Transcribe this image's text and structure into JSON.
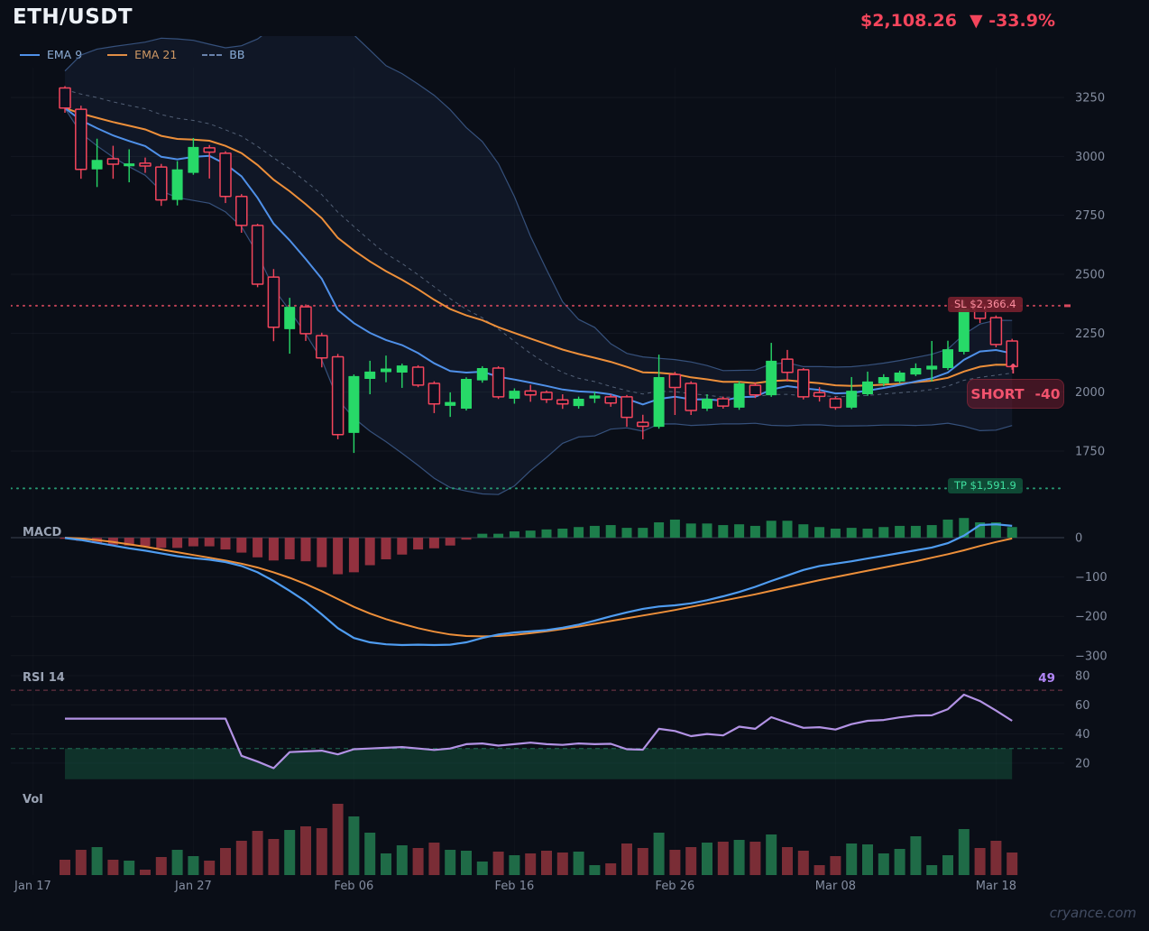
{
  "header": {
    "symbol": "ETH/USDT",
    "price": "$2,108.26",
    "change": "▼ -33.9%"
  },
  "legend": [
    {
      "label": "EMA 9",
      "color": "#4f90e8",
      "style": "solid"
    },
    {
      "label": "EMA 21",
      "color": "#ed8f3a",
      "style": "solid"
    },
    {
      "label": "BB",
      "color": "#6b82a8",
      "style": "dashed"
    }
  ],
  "panels": {
    "macd": {
      "label": "MACD"
    },
    "rsi": {
      "label": "RSI 14",
      "value": "49"
    },
    "vol": {
      "label": "Vol"
    }
  },
  "annotations": {
    "sl": {
      "label": "SL $2,366.4",
      "price": 2366.4
    },
    "tp": {
      "label": "TP $1,591.9",
      "price": 1591.9
    },
    "short": {
      "text": "SHORT",
      "value": "-40",
      "arrow": "↑"
    }
  },
  "watermark": "cryance.com",
  "chart_data": {
    "type": "candlestick",
    "title": "ETH/USDT daily chart with EMA 9, EMA 21, Bollinger Bands, MACD, RSI 14 and volume",
    "colors": {
      "background": "#0a0e17",
      "candle_up": "#27d968",
      "candle_down": "#f4455c",
      "ema9": "#4f90e8",
      "ema21": "#ed8f3a",
      "bb_line": "#3d5c8c",
      "bb_mid": "#93a7c4",
      "macd_line": "#4f9cf0",
      "macd_signal": "#ed8f3a",
      "hist_up": "#1d7e4b",
      "hist_down": "#93313f",
      "rsi_line": "#b292e4",
      "rsi_over": "#c4566a",
      "rsi_under": "#2ea97c",
      "vol_up": "#1f6b47",
      "vol_down": "#7a2d36",
      "sl_line": "#d8495e",
      "tp_line": "#2aa97c",
      "axis_text": "#848da0"
    },
    "axes": {
      "price": [
        {
          "v": 3250,
          "label": "3250"
        },
        {
          "v": 3000,
          "label": "3000"
        },
        {
          "v": 2750,
          "label": "2750"
        },
        {
          "v": 2500,
          "label": "2500"
        },
        {
          "v": 2250,
          "label": "2250"
        },
        {
          "v": 2000,
          "label": "2000"
        },
        {
          "v": 1750,
          "label": "1750"
        }
      ],
      "macd": [
        {
          "v": 0,
          "label": "0"
        },
        {
          "v": -100,
          "label": "−100"
        },
        {
          "v": -200,
          "label": "−200"
        },
        {
          "v": -300,
          "label": "−300"
        }
      ],
      "rsi": [
        {
          "v": 80,
          "label": "80"
        },
        {
          "v": 60,
          "label": "60"
        },
        {
          "v": 40,
          "label": "40"
        },
        {
          "v": 20,
          "label": "20"
        }
      ],
      "x_ticks": [
        {
          "i": -2,
          "label": "Jan 17"
        },
        {
          "i": 8,
          "label": "Jan 27"
        },
        {
          "i": 18,
          "label": "Feb 06"
        },
        {
          "i": 28,
          "label": "Feb 16"
        },
        {
          "i": 38,
          "label": "Feb 26"
        },
        {
          "i": 48,
          "label": "Mar 08"
        },
        {
          "i": 58,
          "label": "Mar 18"
        }
      ]
    },
    "candles": [
      [
        3290,
        3298,
        3185,
        3205
      ],
      [
        3200,
        3215,
        2905,
        2945
      ],
      [
        2945,
        3075,
        2870,
        2985
      ],
      [
        2990,
        3045,
        2905,
        2967
      ],
      [
        2958,
        3030,
        2890,
        2970
      ],
      [
        2971,
        2995,
        2930,
        2959
      ],
      [
        2955,
        2968,
        2790,
        2815
      ],
      [
        2815,
        2980,
        2792,
        2945
      ],
      [
        2930,
        3078,
        2922,
        3040
      ],
      [
        3036,
        3048,
        2906,
        3018
      ],
      [
        3013,
        3022,
        2802,
        2830
      ],
      [
        2830,
        2840,
        2676,
        2707
      ],
      [
        2707,
        2714,
        2445,
        2458
      ],
      [
        2488,
        2522,
        2216,
        2275
      ],
      [
        2267,
        2400,
        2163,
        2362
      ],
      [
        2362,
        2372,
        2217,
        2248
      ],
      [
        2240,
        2252,
        2105,
        2145
      ],
      [
        2150,
        2162,
        1800,
        1820
      ],
      [
        1827,
        2075,
        1742,
        2068
      ],
      [
        2056,
        2133,
        1991,
        2087
      ],
      [
        2085,
        2155,
        2042,
        2100
      ],
      [
        2083,
        2121,
        2018,
        2113
      ],
      [
        2106,
        2114,
        2021,
        2030
      ],
      [
        2037,
        2046,
        1911,
        1950
      ],
      [
        1942,
        1999,
        1895,
        1958
      ],
      [
        1930,
        2063,
        1922,
        2056
      ],
      [
        2050,
        2110,
        2040,
        2102
      ],
      [
        2102,
        2110,
        1971,
        1980
      ],
      [
        1972,
        2016,
        1951,
        2006
      ],
      [
        2005,
        2031,
        1959,
        1988
      ],
      [
        1999,
        2007,
        1954,
        1969
      ],
      [
        1967,
        1991,
        1929,
        1950
      ],
      [
        1941,
        1981,
        1930,
        1972
      ],
      [
        1973,
        2001,
        1954,
        1986
      ],
      [
        1980,
        1991,
        1938,
        1954
      ],
      [
        1980,
        1988,
        1853,
        1893
      ],
      [
        1872,
        1904,
        1800,
        1855
      ],
      [
        1853,
        2159,
        1845,
        2064
      ],
      [
        2075,
        2086,
        1903,
        2020
      ],
      [
        2037,
        2046,
        1903,
        1922
      ],
      [
        1930,
        1991,
        1920,
        1972
      ],
      [
        1972,
        1981,
        1930,
        1941
      ],
      [
        1934,
        2046,
        1925,
        2037
      ],
      [
        2029,
        2041,
        1975,
        1988
      ],
      [
        1987,
        2209,
        1980,
        2133
      ],
      [
        2140,
        2179,
        2045,
        2084
      ],
      [
        2095,
        2102,
        1969,
        1980
      ],
      [
        1998,
        2021,
        1960,
        1982
      ],
      [
        1972,
        1981,
        1925,
        1935
      ],
      [
        1934,
        2064,
        1928,
        2006
      ],
      [
        1991,
        2087,
        1984,
        2045
      ],
      [
        2037,
        2076,
        2025,
        2064
      ],
      [
        2045,
        2091,
        2038,
        2083
      ],
      [
        2075,
        2122,
        2068,
        2102
      ],
      [
        2096,
        2217,
        2045,
        2112
      ],
      [
        2102,
        2218,
        2094,
        2182
      ],
      [
        2171,
        2389,
        2160,
        2354
      ],
      [
        2370,
        2378,
        2293,
        2313
      ],
      [
        2316,
        2325,
        2190,
        2202
      ],
      [
        2217,
        2226,
        2095,
        2108.26
      ]
    ],
    "volume": [
      17,
      28,
      31,
      17,
      16,
      6,
      20,
      28,
      21,
      16,
      30,
      38,
      49,
      40,
      50,
      54,
      52,
      79,
      65,
      47,
      24,
      33,
      30,
      36,
      28,
      27,
      15,
      26,
      22,
      24,
      27,
      25,
      26,
      11,
      13,
      35,
      30,
      47,
      28,
      31,
      36,
      37,
      39,
      37,
      45,
      31,
      27,
      11,
      21,
      35,
      34,
      24,
      29,
      43,
      11,
      22,
      51,
      30,
      38,
      25
    ],
    "macd": {
      "line": [
        -1,
        -6,
        -13,
        -20,
        -27,
        -33,
        -40,
        -47,
        -52,
        -56,
        -62,
        -72,
        -88,
        -110,
        -135,
        -162,
        -195,
        -230,
        -255,
        -266,
        -271,
        -273,
        -272,
        -273,
        -272,
        -266,
        -255,
        -246,
        -241,
        -238,
        -235,
        -229,
        -221,
        -211,
        -200,
        -190,
        -181,
        -175,
        -172,
        -167,
        -159,
        -149,
        -138,
        -125,
        -110,
        -96,
        -82,
        -72,
        -66,
        -60,
        -53,
        -46,
        -39,
        -32,
        -25,
        -14,
        5,
        32,
        34,
        30
      ],
      "signal": [
        0,
        -2,
        -6,
        -11,
        -17,
        -23,
        -30,
        -37,
        -44,
        -51,
        -58,
        -66,
        -76,
        -88,
        -102,
        -118,
        -136,
        -156,
        -176,
        -193,
        -207,
        -219,
        -230,
        -239,
        -246,
        -250,
        -251,
        -250,
        -247,
        -243,
        -238,
        -232,
        -226,
        -219,
        -212,
        -205,
        -198,
        -191,
        -184,
        -176,
        -168,
        -160,
        -152,
        -144,
        -135,
        -126,
        -117,
        -108,
        -100,
        -92,
        -84,
        -76,
        -68,
        -60,
        -51,
        -42,
        -32,
        -21,
        -11,
        -2
      ],
      "histogram": [
        -2,
        -8,
        -14,
        -18,
        -20,
        -22,
        -26,
        -26,
        -22,
        -22,
        -30,
        -38,
        -50,
        -58,
        -55,
        -60,
        -75,
        -93,
        -88,
        -70,
        -55,
        -43,
        -30,
        -27,
        -20,
        -5,
        10,
        10,
        16,
        18,
        21,
        23,
        27,
        30,
        32,
        25,
        25,
        39,
        46,
        36,
        36,
        32,
        34,
        30,
        43,
        43,
        34,
        27,
        23,
        25,
        23,
        27,
        30,
        30,
        32,
        46,
        50,
        39,
        39,
        27
      ]
    },
    "rsi": {
      "overbought": 70,
      "oversold": 30,
      "current": 49,
      "values": [
        50.5,
        50.5,
        50.5,
        50.5,
        50.5,
        50.5,
        50.5,
        50.5,
        50.5,
        50.5,
        50.5,
        25,
        21,
        16.5,
        27.5,
        28,
        28.5,
        26,
        29.5,
        30,
        30.5,
        31,
        30,
        29,
        30,
        33,
        33.5,
        32,
        33,
        34,
        33,
        32.5,
        33.5,
        33,
        33.2,
        29.5,
        29.2,
        43.5,
        42,
        38.5,
        40,
        39,
        45,
        43.5,
        51.5,
        47.8,
        44.2,
        44.6,
        43,
        46.7,
        49,
        49.6,
        51.4,
        52.6,
        52.8,
        57,
        67,
        62.6,
        56,
        49
      ]
    }
  }
}
